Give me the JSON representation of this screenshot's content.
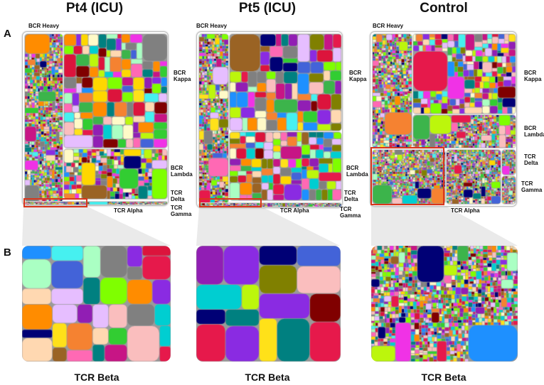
{
  "row_labels": {
    "a": "A",
    "b": "B"
  },
  "columns": [
    {
      "title": "Pt4 (ICU)",
      "labels": {
        "bcr_heavy": "BCR Heavy",
        "bcr_kappa": "BCR\nKappa",
        "bcr_lambda": "BCR\nLambda",
        "tcr_delta": "TCR\nDelta",
        "tcr_gamma": "TCR\nGamma",
        "tcr_alpha": "TCR Alpha"
      },
      "bottom_title": "TCR Beta"
    },
    {
      "title": "Pt5 (ICU)",
      "labels": {
        "bcr_heavy": "BCR Heavy",
        "bcr_kappa": "BCR\nKappa",
        "bcr_lambda": "BCR\nLambda",
        "tcr_delta": "TCR\nDelta",
        "tcr_gamma": "TCR\nGamma",
        "tcr_alpha": "TCR Alpha"
      },
      "bottom_title": "TCR Beta"
    },
    {
      "title": "Control",
      "labels": {
        "bcr_heavy": "BCR Heavy",
        "bcr_kappa": "BCR\nKappa",
        "bcr_lambda": "BCR\nLambda",
        "tcr_delta": "TCR\nDelta",
        "tcr_gamma": "TCR\nGamma",
        "tcr_alpha": "TCR Alpha"
      },
      "bottom_title": "TCR Beta"
    }
  ],
  "colors": {
    "highlight": "#d9361c",
    "palette": [
      "#e6194b",
      "#3cb44b",
      "#ffe119",
      "#4363d8",
      "#f58231",
      "#911eb4",
      "#46f0f0",
      "#f032e6",
      "#bcf60c",
      "#fabebe",
      "#008080",
      "#e6beff",
      "#9a6324",
      "#fffac8",
      "#800000",
      "#aaffc3",
      "#808000",
      "#ffd8b1",
      "#000075",
      "#808080",
      "#ff69b4",
      "#1e90ff",
      "#32cd32",
      "#ff8c00",
      "#8a2be2",
      "#00ced1",
      "#dc143c",
      "#7fff00",
      "#ffd700",
      "#c71585"
    ]
  }
}
